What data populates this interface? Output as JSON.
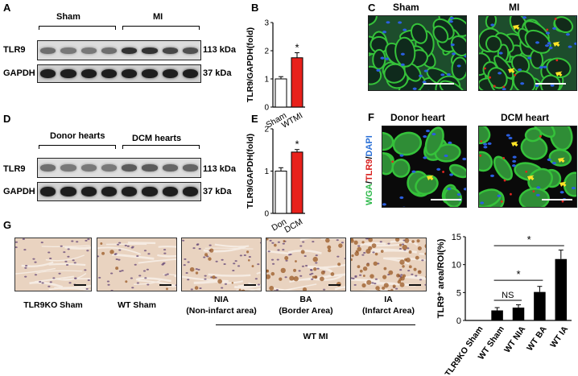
{
  "panels": {
    "A": {
      "letter": "A",
      "group1": "Sham",
      "group2": "MI",
      "row1_label": "TLR9",
      "row1_kda": "113 kDa",
      "row2_label": "GAPDH",
      "row2_kda": "37 kDa"
    },
    "B": {
      "letter": "B",
      "chart_data": {
        "type": "bar",
        "categories": [
          "Sham",
          "WTMI"
        ],
        "values": [
          1.0,
          1.75
        ],
        "errors": [
          0.08,
          0.18
        ],
        "colors": [
          "#ffffff",
          "#e8211b"
        ],
        "ylabel": "TLR9/GAPDH(fold)",
        "ylim": [
          0,
          3
        ],
        "yticks": [
          "0",
          "1",
          "2",
          "3"
        ],
        "annotations": [
          "*"
        ]
      }
    },
    "C": {
      "letter": "C",
      "title_left": "Sham",
      "title_right": "MI"
    },
    "D": {
      "letter": "D",
      "group1": "Donor hearts",
      "group2": "DCM hearts",
      "row1_label": "TLR9",
      "row1_kda": "113 kDa",
      "row2_label": "GAPDH",
      "row2_kda": "37 kDa"
    },
    "E": {
      "letter": "E",
      "chart_data": {
        "type": "bar",
        "categories": [
          "Don",
          "DCM"
        ],
        "values": [
          1.0,
          1.45
        ],
        "errors": [
          0.08,
          0.06
        ],
        "colors": [
          "#ffffff",
          "#e8211b"
        ],
        "ylabel": "TLR9/GAPDH(fold)",
        "ylim": [
          0,
          2
        ],
        "yticks": [
          "0",
          "1",
          "2"
        ],
        "annotations": [
          "*"
        ]
      }
    },
    "F": {
      "letter": "F",
      "title_left": "Donor heart",
      "title_right": "DCM heart",
      "stain_wga": "WGA",
      "stain_sep1": "/",
      "stain_tlr9": "TLR9",
      "stain_sep2": "/",
      "stain_dapi": "DAPI",
      "color_wga": "#2db84a",
      "color_tlr9": "#d9201e",
      "color_dapi": "#2a6fd6"
    },
    "G": {
      "letter": "G",
      "captions": [
        "TLR9KO Sham",
        "WT Sham",
        "NIA",
        "BA",
        "IA"
      ],
      "subcaptions": [
        "(Non-infarct area)",
        "(Border Area)",
        "(Infarct Area)"
      ],
      "group_label": "WT MI",
      "chart_data": {
        "type": "bar",
        "categories": [
          "TLR9KO Sham",
          "WT Sham",
          "WT NIA",
          "WT BA",
          "WT IA"
        ],
        "values": [
          0.0,
          1.8,
          2.3,
          5.1,
          11.0
        ],
        "errors": [
          0.0,
          0.5,
          0.5,
          1.0,
          1.6
        ],
        "ylabel": "TLR9⁺ area/ROI(%)",
        "ylim": [
          0,
          15
        ],
        "yticks": [
          "0",
          "5",
          "10",
          "15"
        ],
        "annotations": [
          {
            "from": "WT Sham",
            "to": "WT NIA",
            "text": "NS"
          },
          {
            "from": "WT Sham",
            "to": "WT BA",
            "text": "*"
          },
          {
            "from": "WT Sham",
            "to": "WT IA",
            "text": "*"
          }
        ]
      }
    }
  }
}
